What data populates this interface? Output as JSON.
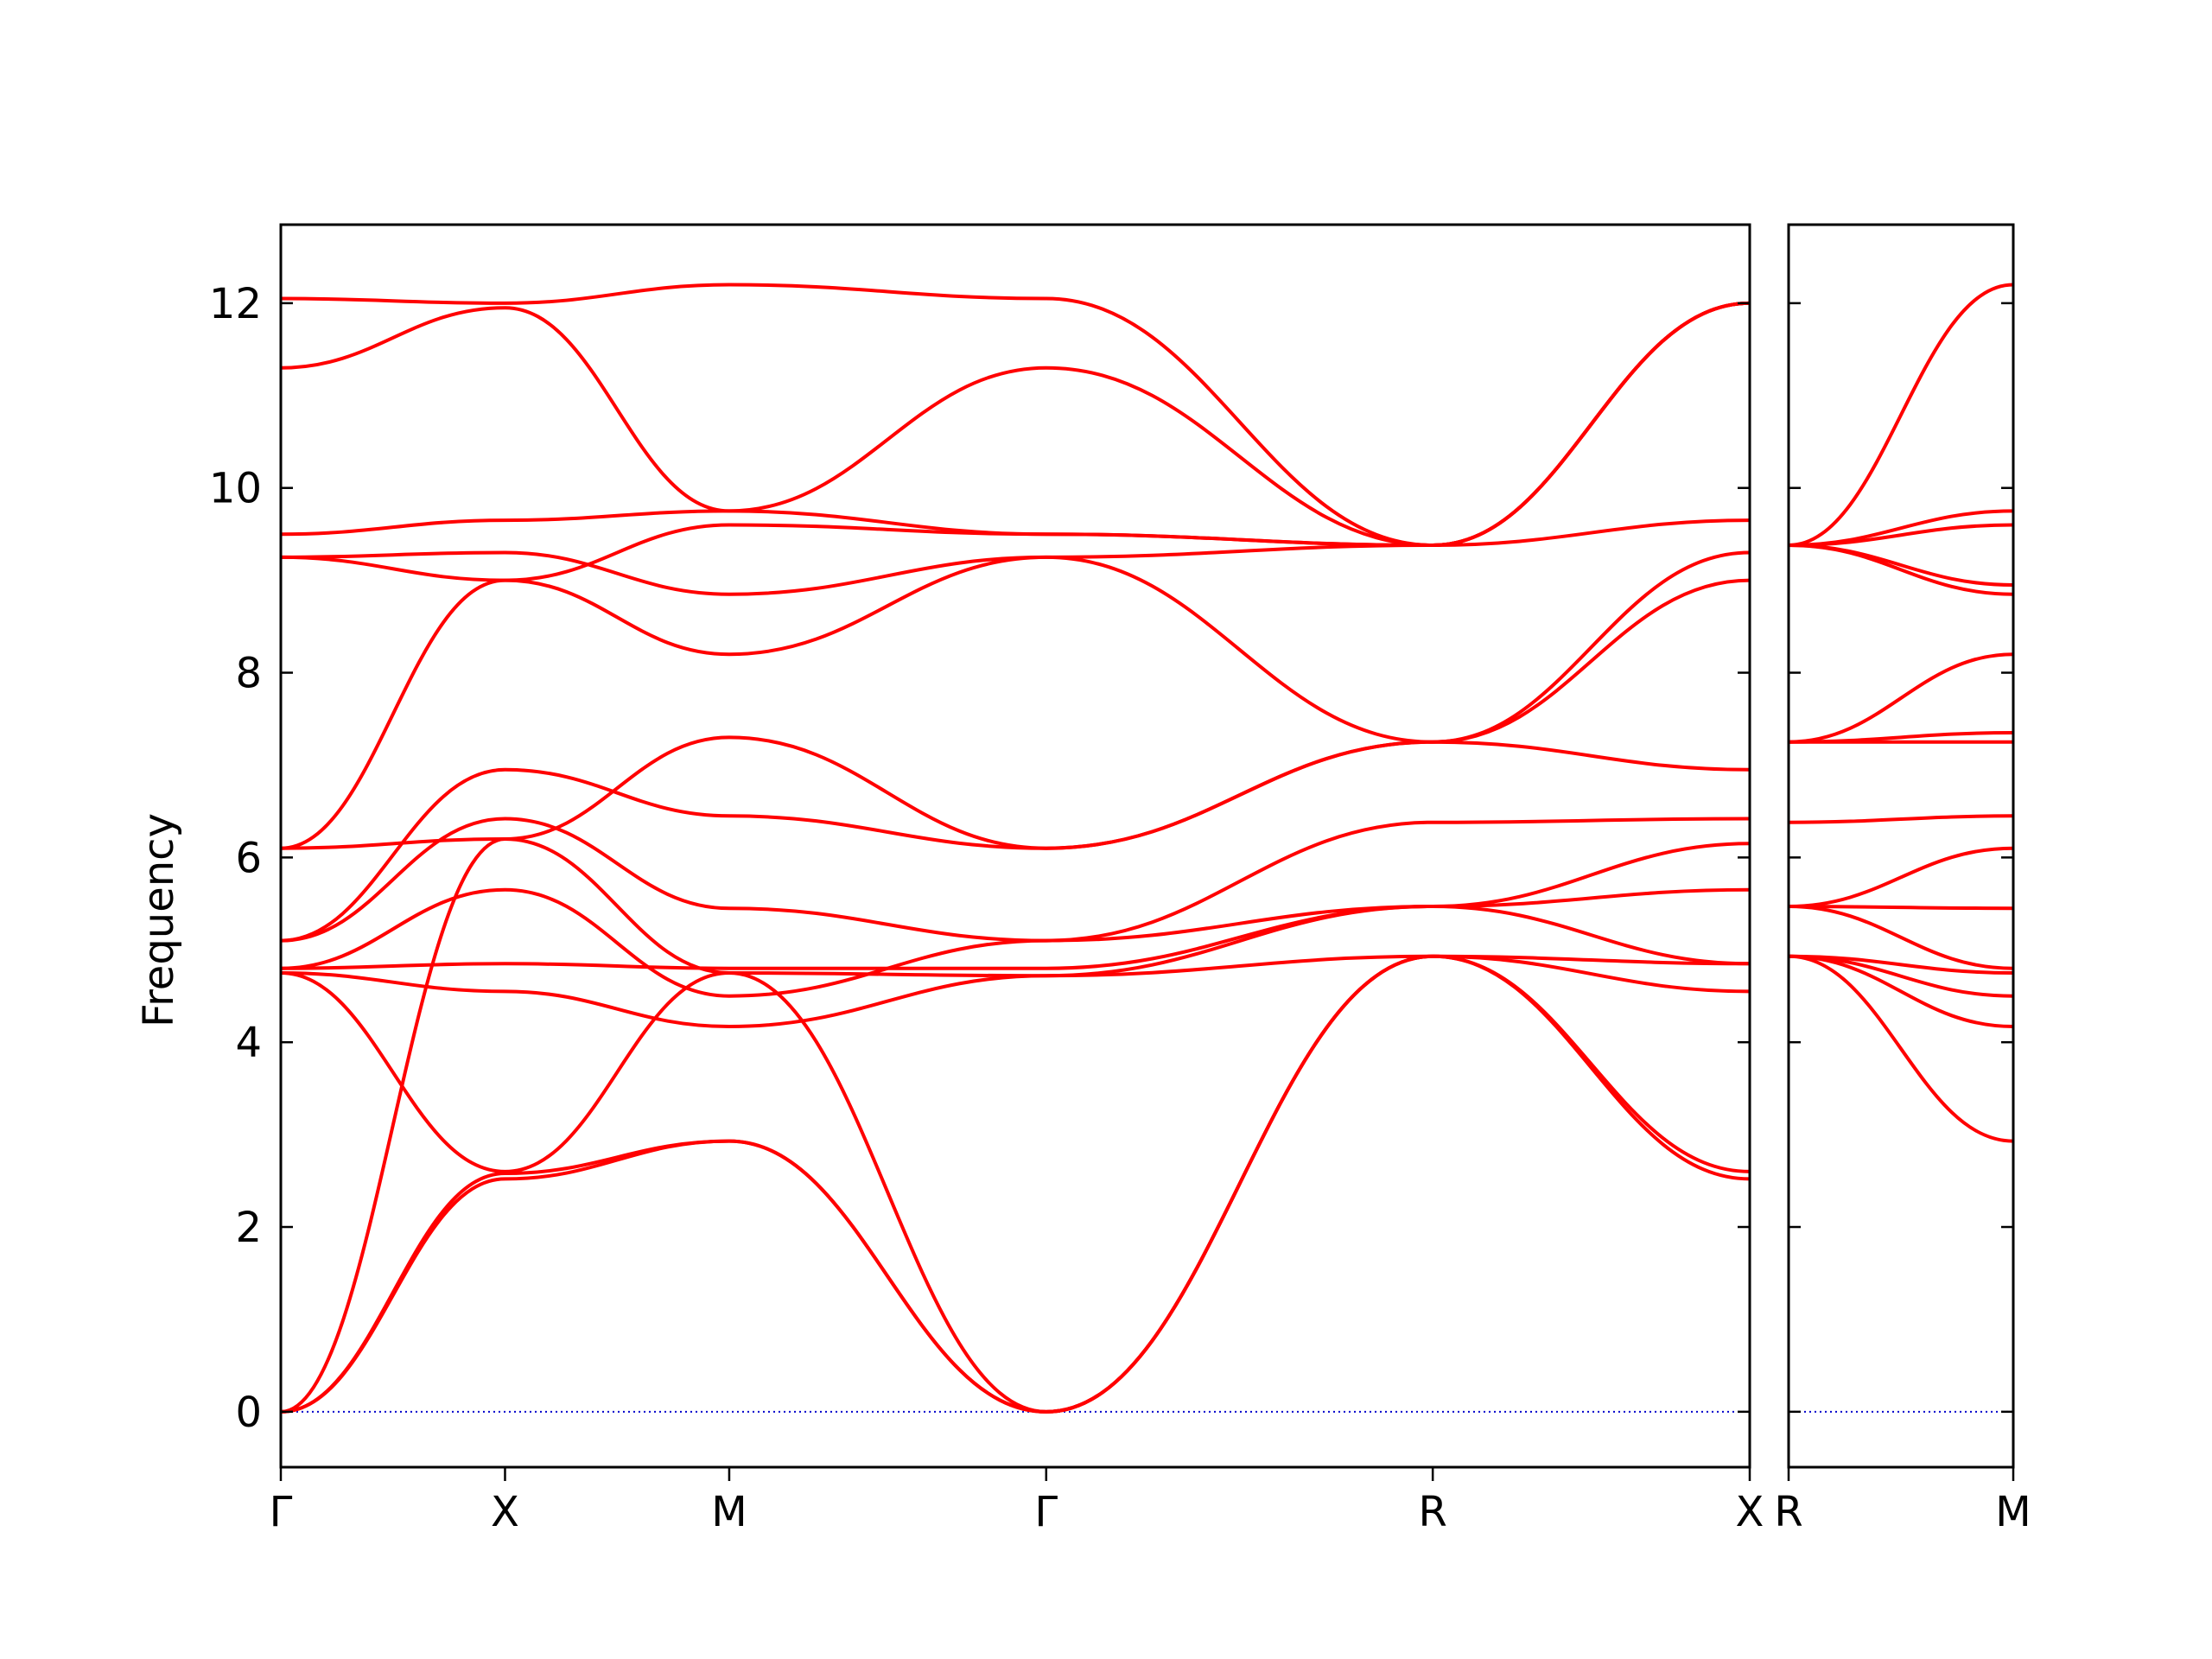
{
  "chart_data": {
    "type": "line",
    "title": "",
    "xlabel": "",
    "ylabel": "Frequency",
    "ylim": [
      -0.6,
      12.85
    ],
    "yticks": [
      0,
      2,
      4,
      6,
      8,
      10,
      12
    ],
    "ytick_labels": [
      "0",
      "2",
      "4",
      "6",
      "8",
      "10",
      "12"
    ],
    "grid": false,
    "legend": "none",
    "line_color": "#ff0000",
    "zero_line_color": "#0000cc",
    "panels": [
      {
        "xlim": [
          0,
          3.8
        ],
        "xticks": [
          0,
          0.58,
          1.16,
          1.98,
          2.98,
          3.8
        ],
        "xtick_labels": [
          "Γ",
          "X",
          "M",
          "Γ",
          "R",
          "X"
        ],
        "bands": [
          [
            [
              0,
              0
            ],
            [
              0.58,
              2.52
            ],
            [
              1.16,
              2.93
            ],
            [
              1.98,
              0
            ],
            [
              2.98,
              4.93
            ],
            [
              3.8,
              2.52
            ]
          ],
          [
            [
              0,
              0
            ],
            [
              0.58,
              2.58
            ],
            [
              1.16,
              2.93
            ],
            [
              1.98,
              0
            ],
            [
              2.98,
              4.93
            ],
            [
              3.8,
              2.6
            ]
          ],
          [
            [
              0,
              0
            ],
            [
              0.58,
              6.2
            ],
            [
              1.16,
              4.75
            ],
            [
              1.98,
              0
            ],
            [
              2.98,
              4.93
            ],
            [
              3.8,
              4.55
            ]
          ],
          [
            [
              0,
              4.75
            ],
            [
              0.58,
              2.6
            ],
            [
              1.16,
              4.75
            ],
            [
              1.98,
              4.72
            ],
            [
              2.98,
              4.93
            ],
            [
              3.8,
              4.85
            ]
          ],
          [
            [
              0,
              4.75
            ],
            [
              0.58,
              4.55
            ],
            [
              1.16,
              4.17
            ],
            [
              1.98,
              4.72
            ],
            [
              2.98,
              5.47
            ],
            [
              3.8,
              5.65
            ]
          ],
          [
            [
              0,
              4.8
            ],
            [
              0.58,
              4.85
            ],
            [
              1.16,
              4.8
            ],
            [
              1.98,
              4.8
            ],
            [
              2.98,
              5.47
            ],
            [
              3.8,
              4.85
            ]
          ],
          [
            [
              0,
              4.8
            ],
            [
              0.58,
              5.65
            ],
            [
              1.16,
              4.5
            ],
            [
              1.98,
              5.1
            ],
            [
              2.98,
              5.47
            ],
            [
              3.8,
              6.15
            ]
          ],
          [
            [
              0,
              5.1
            ],
            [
              0.58,
              6.42
            ],
            [
              1.16,
              5.45
            ],
            [
              1.98,
              5.1
            ],
            [
              2.98,
              6.38
            ],
            [
              3.8,
              6.42
            ]
          ],
          [
            [
              0,
              5.1
            ],
            [
              0.58,
              6.95
            ],
            [
              1.16,
              6.45
            ],
            [
              1.98,
              6.1
            ],
            [
              2.98,
              7.25
            ],
            [
              3.8,
              6.95
            ]
          ],
          [
            [
              0,
              6.1
            ],
            [
              0.58,
              6.2
            ],
            [
              1.16,
              7.3
            ],
            [
              1.98,
              6.1
            ],
            [
              2.98,
              7.25
            ],
            [
              3.8,
              9.0
            ]
          ],
          [
            [
              0,
              6.1
            ],
            [
              0.58,
              9.0
            ],
            [
              1.16,
              8.2
            ],
            [
              1.98,
              9.25
            ],
            [
              2.98,
              7.25
            ],
            [
              3.8,
              9.3
            ]
          ],
          [
            [
              0,
              9.25
            ],
            [
              0.58,
              9.3
            ],
            [
              1.16,
              8.85
            ],
            [
              1.98,
              9.25
            ],
            [
              2.98,
              9.38
            ],
            [
              3.8,
              9.65
            ]
          ],
          [
            [
              0,
              9.25
            ],
            [
              0.58,
              9.0
            ],
            [
              1.16,
              9.6
            ],
            [
              1.98,
              9.5
            ],
            [
              2.98,
              9.38
            ],
            [
              3.8,
              12.0
            ]
          ],
          [
            [
              0,
              9.5
            ],
            [
              0.58,
              9.65
            ],
            [
              1.16,
              9.75
            ],
            [
              1.98,
              9.5
            ],
            [
              2.98,
              9.38
            ],
            [
              3.8,
              12.0
            ]
          ],
          [
            [
              0,
              11.3
            ],
            [
              0.58,
              11.95
            ],
            [
              1.16,
              9.75
            ],
            [
              1.98,
              11.3
            ],
            [
              2.98,
              9.38
            ],
            [
              3.8,
              12.0
            ]
          ],
          [
            [
              0,
              12.05
            ],
            [
              0.58,
              12.0
            ],
            [
              1.16,
              12.2
            ],
            [
              1.98,
              12.05
            ],
            [
              2.98,
              9.38
            ],
            [
              3.8,
              12.0
            ]
          ]
        ]
      },
      {
        "xlim": [
          0,
          0.58
        ],
        "xticks": [
          0,
          0.58
        ],
        "xtick_labels": [
          "R",
          "M"
        ],
        "bands": [
          [
            [
              0,
              4.93
            ],
            [
              0.58,
              2.93
            ]
          ],
          [
            [
              0,
              4.93
            ],
            [
              0.58,
              4.17
            ]
          ],
          [
            [
              0,
              4.93
            ],
            [
              0.58,
              4.5
            ]
          ],
          [
            [
              0,
              4.93
            ],
            [
              0.58,
              4.75
            ]
          ],
          [
            [
              0,
              5.47
            ],
            [
              0.58,
              4.8
            ]
          ],
          [
            [
              0,
              5.47
            ],
            [
              0.58,
              5.45
            ]
          ],
          [
            [
              0,
              5.47
            ],
            [
              0.58,
              6.1
            ]
          ],
          [
            [
              0,
              6.38
            ],
            [
              0.58,
              6.45
            ]
          ],
          [
            [
              0,
              7.25
            ],
            [
              0.58,
              7.25
            ]
          ],
          [
            [
              0,
              7.25
            ],
            [
              0.58,
              7.35
            ]
          ],
          [
            [
              0,
              7.25
            ],
            [
              0.58,
              8.2
            ]
          ],
          [
            [
              0,
              9.38
            ],
            [
              0.58,
              8.85
            ]
          ],
          [
            [
              0,
              9.38
            ],
            [
              0.58,
              8.95
            ]
          ],
          [
            [
              0,
              9.38
            ],
            [
              0.58,
              9.6
            ]
          ],
          [
            [
              0,
              9.38
            ],
            [
              0.58,
              9.75
            ]
          ],
          [
            [
              0,
              9.38
            ],
            [
              0.58,
              12.2
            ]
          ]
        ]
      }
    ]
  }
}
